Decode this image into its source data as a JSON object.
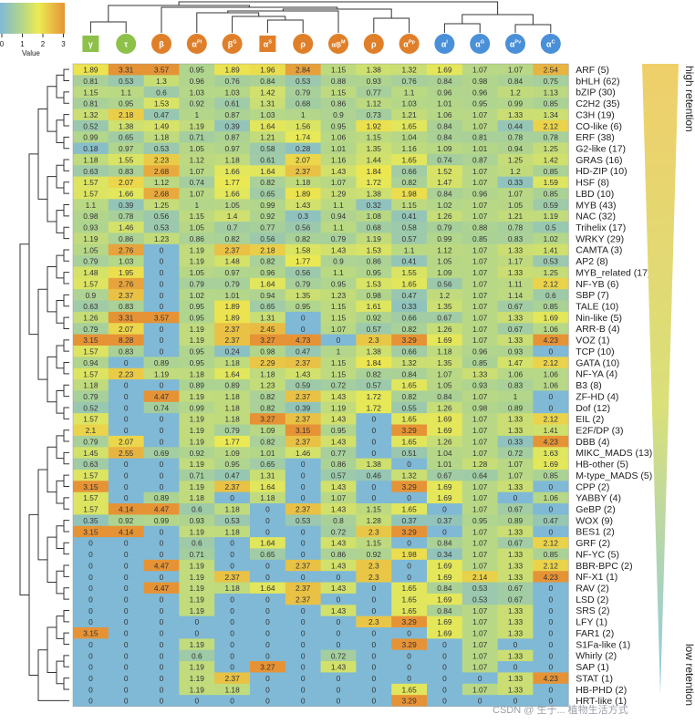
{
  "chart_data": {
    "type": "heatmap",
    "legend": {
      "title": "Value",
      "ticks": [
        "0",
        "1",
        "2",
        "3"
      ],
      "range": [
        0,
        3
      ]
    },
    "colors": {
      "low": "#7fb9d6",
      "midlow": "#b3d68a",
      "mid": "#ecea52",
      "high": "#e69336",
      "green_badge": "#8dc14a",
      "orange_badge": "#e07f2a",
      "blue_badge": "#4a90d9",
      "triangle_top": "#efcf6a",
      "triangle_bottom": "#8ecae6"
    },
    "columns": [
      {
        "symbol": "γ",
        "sup": "",
        "shape": "square",
        "color": "green"
      },
      {
        "symbol": "τ",
        "sup": "",
        "shape": "circle",
        "color": "green"
      },
      {
        "symbol": "β",
        "sup": "",
        "shape": "circle",
        "color": "orange"
      },
      {
        "symbol": "α",
        "sup": "Pl",
        "shape": "circle",
        "color": "orange"
      },
      {
        "symbol": "β",
        "sup": "G",
        "shape": "circle",
        "color": "orange"
      },
      {
        "symbol": "α",
        "sup": "S",
        "shape": "square",
        "color": "orange"
      },
      {
        "symbol": "ρ",
        "sup": "",
        "shape": "circle",
        "color": "orange"
      },
      {
        "symbol": "α/β",
        "sup": "M",
        "shape": "circle",
        "color": "orange"
      },
      {
        "symbol": "ρ",
        "sup": "",
        "shape": "circle",
        "color": "orange"
      },
      {
        "symbol": "α",
        "sup": "Pp",
        "shape": "circle",
        "color": "orange"
      },
      {
        "symbol": "α",
        "sup": "l",
        "shape": "circle",
        "color": "blue"
      },
      {
        "symbol": "α",
        "sup": "G",
        "shape": "circle",
        "color": "blue"
      },
      {
        "symbol": "α",
        "sup": "Pv",
        "shape": "circle",
        "color": "blue"
      },
      {
        "symbol": "α",
        "sup": "C",
        "shape": "circle",
        "color": "blue"
      }
    ],
    "rows": [
      {
        "label": "ARF (5)",
        "values": [
          1.89,
          3.31,
          3.57,
          0.95,
          1.89,
          1.96,
          2.84,
          1.15,
          1.38,
          1.32,
          1.69,
          1.07,
          1.07,
          2.54
        ]
      },
      {
        "label": "bHLH (62)",
        "values": [
          0.81,
          0.53,
          1.3,
          0.96,
          0.76,
          0.84,
          0.53,
          0.88,
          0.93,
          0.76,
          0.84,
          0.98,
          0.84,
          0.75
        ]
      },
      {
        "label": "bZIP (30)",
        "values": [
          1.15,
          1.1,
          0.6,
          1.03,
          1.03,
          1.42,
          0.79,
          1.15,
          0.77,
          1.1,
          0.96,
          0.96,
          1.2,
          1.13
        ]
      },
      {
        "label": "C2H2 (35)",
        "values": [
          0.81,
          0.95,
          1.53,
          0.92,
          0.61,
          1.31,
          0.68,
          0.86,
          1.12,
          1.03,
          1.01,
          0.95,
          0.99,
          0.85
        ]
      },
      {
        "label": "C3H (19)",
        "values": [
          1.32,
          2.18,
          0.47,
          1,
          0.87,
          1.03,
          1,
          0.9,
          0.73,
          1.21,
          1.06,
          1.07,
          1.33,
          1.34
        ]
      },
      {
        "label": "CO-like (6)",
        "values": [
          0.52,
          1.38,
          1.49,
          1.19,
          0.39,
          1.64,
          1.56,
          0.95,
          1.92,
          1.65,
          0.84,
          1.07,
          0.44,
          2.12
        ]
      },
      {
        "label": "ERF (38)",
        "values": [
          0.99,
          0.65,
          1.18,
          0.71,
          0.87,
          1.21,
          1.74,
          1.06,
          1.15,
          1.04,
          0.84,
          0.81,
          0.78,
          0.78
        ]
      },
      {
        "label": "G2-like (17)",
        "values": [
          0.18,
          0.97,
          0.53,
          1.05,
          0.97,
          0.58,
          0.28,
          1.01,
          1.35,
          1.16,
          1.09,
          1.01,
          0.94,
          1.25
        ]
      },
      {
        "label": "GRAS (16)",
        "values": [
          1.18,
          1.55,
          2.23,
          1.12,
          1.18,
          0.61,
          2.07,
          1.16,
          1.44,
          1.65,
          0.74,
          0.87,
          1.25,
          1.42
        ]
      },
      {
        "label": "HD-ZIP (10)",
        "values": [
          0.63,
          0.83,
          2.68,
          1.07,
          1.66,
          1.64,
          2.37,
          1.43,
          1.84,
          0.66,
          1.52,
          1.07,
          1.2,
          0.85
        ]
      },
      {
        "label": "HSF (8)",
        "values": [
          1.57,
          2.07,
          1.12,
          0.74,
          1.77,
          0.82,
          1.18,
          1.07,
          1.72,
          0.82,
          1.47,
          1.07,
          0.33,
          1.59
        ]
      },
      {
        "label": "LBD (10)",
        "values": [
          1.57,
          1.66,
          2.68,
          1.07,
          1.66,
          0.65,
          1.89,
          1.29,
          1.38,
          1.98,
          0.84,
          0.96,
          1.07,
          0.85
        ]
      },
      {
        "label": "MYB (43)",
        "values": [
          1.1,
          0.39,
          1.25,
          1,
          1.05,
          0.99,
          1.43,
          1.1,
          0.32,
          1.15,
          1.02,
          1.07,
          1.05,
          0.59
        ]
      },
      {
        "label": "NAC (32)",
        "values": [
          0.98,
          0.78,
          0.56,
          1.15,
          1.4,
          0.92,
          0.3,
          0.94,
          1.08,
          0.41,
          1.26,
          1.07,
          1.21,
          1.19
        ]
      },
      {
        "label": "Trihelix (17)",
        "values": [
          0.93,
          1.46,
          0.53,
          1.05,
          0.7,
          0.77,
          0.56,
          1.1,
          0.68,
          0.58,
          0.79,
          0.88,
          0.78,
          0.5
        ]
      },
      {
        "label": "WRKY (29)",
        "values": [
          1.19,
          0.86,
          1.23,
          0.86,
          0.82,
          0.56,
          0.82,
          0.79,
          1.19,
          0.57,
          0.99,
          0.85,
          0.83,
          1.02
        ]
      },
      {
        "label": "CAMTA (3)",
        "values": [
          1.05,
          2.76,
          0,
          1.19,
          2.37,
          2.18,
          1.58,
          1.43,
          1.53,
          1.1,
          1.12,
          1.07,
          1.33,
          1.41
        ]
      },
      {
        "label": "AP2 (8)",
        "values": [
          0.79,
          1.03,
          0,
          1.19,
          1.48,
          0.82,
          1.77,
          0.9,
          0.86,
          0.41,
          1.05,
          1.07,
          1.17,
          0.53
        ]
      },
      {
        "label": "MYB_related (17)",
        "values": [
          1.48,
          1.95,
          0,
          1.05,
          0.97,
          0.96,
          0.56,
          1.1,
          0.95,
          1.55,
          1.09,
          1.07,
          1.33,
          1.25
        ]
      },
      {
        "label": "NF-YB (6)",
        "values": [
          1.57,
          2.76,
          0,
          0.79,
          0.79,
          1.64,
          0.79,
          0.95,
          1.53,
          1.65,
          0.56,
          1.07,
          1.11,
          2.12
        ]
      },
      {
        "label": "SBP (7)",
        "values": [
          0.9,
          2.37,
          0,
          1.02,
          1.01,
          0.94,
          1.35,
          1.23,
          0.98,
          0.47,
          1.2,
          1.07,
          1.14,
          0.6
        ]
      },
      {
        "label": "TALE (10)",
        "values": [
          0.63,
          0.83,
          0,
          0.95,
          1.89,
          0.65,
          0.95,
          1.15,
          1.61,
          0.33,
          1.35,
          1.07,
          0.67,
          0.85
        ]
      },
      {
        "label": "Nin-like (5)",
        "values": [
          1.26,
          3.31,
          3.57,
          0.95,
          1.89,
          1.31,
          0,
          1.15,
          0.92,
          0.66,
          0.67,
          1.07,
          1.33,
          1.69
        ]
      },
      {
        "label": "ARR-B (4)",
        "values": [
          0.79,
          2.07,
          0,
          1.19,
          2.37,
          2.45,
          0,
          1.07,
          0.57,
          0.82,
          1.26,
          1.07,
          0.67,
          1.06
        ]
      },
      {
        "label": "VOZ (1)",
        "values": [
          3.15,
          8.28,
          0,
          1.19,
          2.37,
          3.27,
          4.73,
          0,
          2.3,
          3.29,
          1.69,
          1.07,
          1.33,
          4.23
        ]
      },
      {
        "label": "TCP (10)",
        "values": [
          1.57,
          0.83,
          0,
          0.95,
          0.24,
          0.98,
          0.47,
          1,
          1.38,
          0.66,
          1.18,
          0.96,
          0.93,
          0
        ]
      },
      {
        "label": "GATA (10)",
        "values": [
          0.94,
          0,
          0.89,
          0.95,
          1.18,
          2.29,
          2.37,
          1.15,
          1.84,
          1.32,
          1.35,
          0.85,
          1.47,
          2.12
        ]
      },
      {
        "label": "NF-YA (4)",
        "values": [
          1.57,
          2.23,
          1.19,
          1.18,
          1.64,
          1.18,
          1.43,
          1.15,
          0.82,
          0.84,
          1.07,
          1.33,
          1.06,
          1.06
        ]
      },
      {
        "label": "B3 (8)",
        "values": [
          1.18,
          0,
          0,
          0.89,
          0.89,
          1.23,
          0.59,
          0.72,
          0.57,
          1.65,
          1.05,
          0.93,
          0.83,
          1.06
        ]
      },
      {
        "label": "ZF-HD (4)",
        "values": [
          0.79,
          0,
          4.47,
          1.19,
          1.18,
          0.82,
          2.37,
          1.43,
          1.72,
          0.82,
          0.84,
          1.07,
          1,
          0
        ]
      },
      {
        "label": "Dof (12)",
        "values": [
          0.52,
          0,
          0.74,
          0.99,
          1.18,
          0.82,
          0.39,
          1.19,
          1.72,
          0.55,
          1.26,
          0.98,
          0.89,
          0
        ]
      },
      {
        "label": "EIL (2)",
        "values": [
          1.57,
          0,
          0,
          1.19,
          1.18,
          3.27,
          2.37,
          1.43,
          0,
          1.65,
          1.69,
          1.07,
          1.33,
          2.12
        ]
      },
      {
        "label": "E2F/DP (3)",
        "values": [
          2.1,
          0,
          0,
          1.19,
          0.79,
          1.09,
          3.15,
          0.95,
          0,
          3.29,
          1.69,
          1.07,
          1.33,
          1.41
        ]
      },
      {
        "label": "DBB (4)",
        "values": [
          0.79,
          2.07,
          0,
          1.19,
          1.77,
          0.82,
          2.37,
          1.43,
          0,
          1.65,
          1.26,
          1.07,
          0.33,
          4.23
        ]
      },
      {
        "label": "MIKC_MADS (13)",
        "values": [
          1.45,
          2.55,
          0.69,
          0.92,
          1.09,
          1.01,
          1.46,
          0.77,
          0,
          0.51,
          1.04,
          1.07,
          0.72,
          1.63
        ]
      },
      {
        "label": "HB-other (5)",
        "values": [
          0.63,
          0,
          0,
          1.19,
          0.95,
          0.65,
          0,
          0.86,
          1.38,
          0,
          1.01,
          1.28,
          1.07,
          1.69
        ]
      },
      {
        "label": "M-type_MADS (5)",
        "values": [
          1.57,
          0,
          0,
          0.71,
          0.47,
          1.31,
          0,
          0.57,
          0.46,
          1.32,
          0.67,
          0.64,
          1.07,
          0.85
        ]
      },
      {
        "label": "CPP (2)",
        "values": [
          3.15,
          0,
          0,
          1.19,
          2.37,
          1.64,
          0,
          1.43,
          0,
          3.29,
          1.69,
          1.07,
          1.33,
          0
        ]
      },
      {
        "label": "YABBY (4)",
        "values": [
          1.57,
          0,
          0.89,
          1.18,
          0,
          1.18,
          0,
          1.07,
          0,
          0,
          1.69,
          1.07,
          0,
          1.06
        ]
      },
      {
        "label": "GeBP (2)",
        "values": [
          1.57,
          4.14,
          4.47,
          0.6,
          1.18,
          0,
          2.37,
          1.43,
          1.15,
          1.65,
          0,
          1.07,
          0.67,
          0
        ]
      },
      {
        "label": "WOX (9)",
        "values": [
          0.35,
          0.92,
          0.99,
          0.93,
          0.53,
          0,
          0.53,
          0.8,
          1.28,
          0.37,
          0.37,
          0.95,
          0.89,
          0.47
        ]
      },
      {
        "label": "BES1 (2)",
        "values": [
          3.15,
          4.14,
          0,
          1.19,
          1.18,
          0,
          0,
          0.72,
          2.3,
          3.29,
          0,
          1.07,
          1.33,
          0
        ]
      },
      {
        "label": "GRF (2)",
        "values": [
          0,
          0,
          0,
          0.6,
          0,
          1.64,
          0,
          1.43,
          1.15,
          0,
          0.84,
          1.07,
          0.67,
          2.12
        ]
      },
      {
        "label": "NF-YC (5)",
        "values": [
          0,
          0,
          0,
          0.71,
          0,
          0.65,
          0,
          0.86,
          0.92,
          1.98,
          0.34,
          1.07,
          1.33,
          0.85
        ]
      },
      {
        "label": "BBR-BPC (2)",
        "values": [
          0,
          0,
          4.47,
          1.19,
          0,
          0,
          2.37,
          1.43,
          2.3,
          0,
          1.69,
          1.07,
          1.33,
          2.12
        ]
      },
      {
        "label": "NF-X1 (1)",
        "values": [
          0,
          0,
          0,
          1.19,
          2.37,
          0,
          0,
          0,
          2.3,
          0,
          1.69,
          2.14,
          1.33,
          4.23
        ]
      },
      {
        "label": "RAV (2)",
        "values": [
          0,
          0,
          4.47,
          1.19,
          1.18,
          1.64,
          2.37,
          1.43,
          0,
          1.65,
          0.84,
          0.53,
          0.67,
          0
        ]
      },
      {
        "label": "LSD (2)",
        "values": [
          0,
          0,
          0,
          1.19,
          0,
          0,
          2.37,
          0,
          0,
          1.65,
          1.69,
          0.53,
          0.67,
          0
        ]
      },
      {
        "label": "SRS (2)",
        "values": [
          0,
          0,
          0,
          1.19,
          0,
          0,
          0,
          1.43,
          0,
          1.65,
          0.84,
          1.07,
          1.33,
          0
        ]
      },
      {
        "label": "LFY (1)",
        "values": [
          0,
          0,
          0,
          0,
          0,
          0,
          0,
          0,
          2.3,
          3.29,
          1.69,
          1.07,
          1.33,
          0
        ]
      },
      {
        "label": "FAR1 (2)",
        "values": [
          3.15,
          0,
          0,
          0,
          0,
          0,
          0,
          0,
          0,
          0,
          1.69,
          1.07,
          1.33,
          0
        ]
      },
      {
        "label": "S1Fa-like (1)",
        "values": [
          0,
          0,
          0,
          1.19,
          0,
          0,
          0,
          0,
          0,
          3.29,
          0,
          1.07,
          0,
          0
        ]
      },
      {
        "label": "Whirly (2)",
        "values": [
          0,
          0,
          0,
          0.6,
          0,
          0,
          0,
          0.72,
          0,
          0,
          0,
          1.07,
          1.33,
          0
        ]
      },
      {
        "label": "SAP (1)",
        "values": [
          0,
          0,
          0,
          1.19,
          0,
          3.27,
          0,
          1.43,
          0,
          0,
          0,
          1.07,
          0,
          0
        ]
      },
      {
        "label": "STAT (1)",
        "values": [
          0,
          0,
          0,
          1.19,
          2.37,
          0,
          0,
          0,
          0,
          0,
          0,
          0,
          1.33,
          4.23
        ]
      },
      {
        "label": "HB-PHD (2)",
        "values": [
          0,
          0,
          0,
          1.19,
          1.18,
          0,
          0,
          0,
          0,
          1.65,
          0,
          1.07,
          1.33,
          0
        ]
      },
      {
        "label": "HRT-like (1)",
        "values": [
          0,
          0,
          0,
          0,
          0,
          0,
          0,
          0,
          0,
          3.29,
          0,
          0,
          0,
          0
        ]
      }
    ],
    "side_labels": {
      "top": "high retention",
      "bottom": "low retention"
    }
  },
  "watermark": "CSDN @ 生于... 植物生活方式"
}
